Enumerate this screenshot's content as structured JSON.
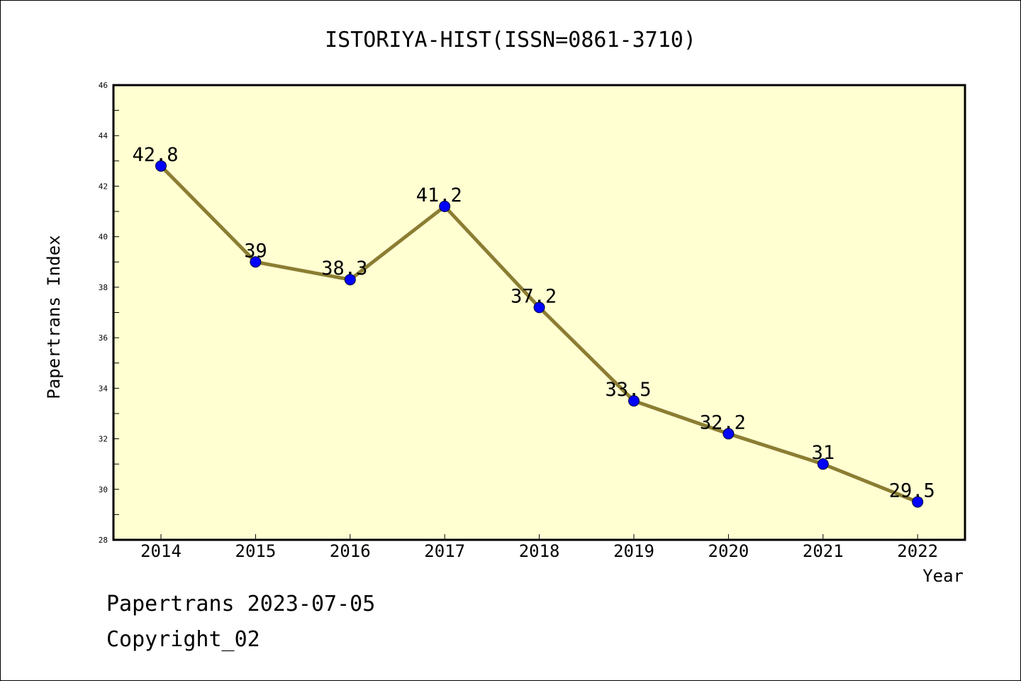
{
  "chart_data": {
    "type": "line",
    "title": "ISTORIYA-HIST(ISSN=0861-3710)",
    "xlabel": "Year",
    "ylabel": "Papertrans Index",
    "categories": [
      "2014",
      "2015",
      "2016",
      "2017",
      "2018",
      "2019",
      "2020",
      "2021",
      "2022"
    ],
    "series": [
      {
        "values": [
          42.8,
          39,
          38.3,
          41.2,
          37.2,
          33.5,
          32.2,
          31,
          29.5
        ],
        "labels": [
          "42.8",
          "39",
          "38.3",
          "41.2",
          "37.2",
          "33.5",
          "32.2",
          "31",
          "29.5"
        ]
      }
    ],
    "ylim": [
      28,
      46
    ],
    "yticks": [
      "28",
      "30",
      "32",
      "34",
      "36",
      "38",
      "40",
      "42",
      "44",
      "46"
    ],
    "grid": false,
    "colors": {
      "plot_background": "#ffffd2",
      "line": "#8b7d32",
      "marker": "#0000ff"
    }
  },
  "footer": {
    "line1": "Papertrans 2023-07-05",
    "line2": "Copyright_02"
  }
}
